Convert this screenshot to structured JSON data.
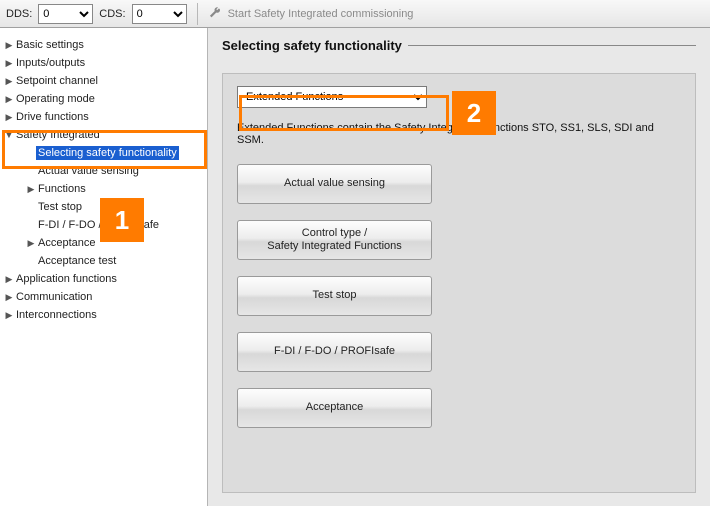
{
  "topbar": {
    "dds_label": "DDS:",
    "dds_value": "0",
    "cds_label": "CDS:",
    "cds_value": "0",
    "commission_label": "Start Safety Integrated commissioning"
  },
  "tree": [
    {
      "indent": 0,
      "arrow": "right",
      "label": "Basic settings"
    },
    {
      "indent": 0,
      "arrow": "right",
      "label": "Inputs/outputs"
    },
    {
      "indent": 0,
      "arrow": "right",
      "label": "Setpoint channel"
    },
    {
      "indent": 0,
      "arrow": "right",
      "label": "Operating mode"
    },
    {
      "indent": 0,
      "arrow": "right",
      "label": "Drive functions"
    },
    {
      "indent": 0,
      "arrow": "down",
      "label": "Safety Integrated"
    },
    {
      "indent": 1,
      "arrow": "none",
      "label": "Selecting safety functionality",
      "selected": true
    },
    {
      "indent": 1,
      "arrow": "none",
      "label": "Actual value sensing"
    },
    {
      "indent": 1,
      "arrow": "right",
      "label": "Functions"
    },
    {
      "indent": 1,
      "arrow": "none",
      "label": "Test stop"
    },
    {
      "indent": 1,
      "arrow": "none",
      "label": "F-DI / F-DO / PROFIsafe"
    },
    {
      "indent": 1,
      "arrow": "right",
      "label": "Acceptance"
    },
    {
      "indent": 1,
      "arrow": "none",
      "label": "Acceptance test"
    },
    {
      "indent": 0,
      "arrow": "right",
      "label": "Application functions"
    },
    {
      "indent": 0,
      "arrow": "right",
      "label": "Communication"
    },
    {
      "indent": 0,
      "arrow": "right",
      "label": "Interconnections"
    }
  ],
  "content": {
    "section_title": "Selecting safety functionality",
    "dropdown_value": "Extended Functions",
    "description": "Extended Functions contain the Safety Integrated Functions STO, SS1, SLS, SDI and SSM.",
    "buttons": [
      "Actual value sensing",
      "Control type /\nSafety Integrated Functions",
      "Test stop",
      "F-DI / F-DO / PROFIsafe",
      "Acceptance"
    ]
  },
  "callouts": {
    "one": "1",
    "two": "2"
  },
  "style": {
    "accent": "#ff7b00",
    "selection_bg": "#1a5fd0",
    "page_bg": "#e8e8e8",
    "panel_bg": "#dcdcdc"
  }
}
